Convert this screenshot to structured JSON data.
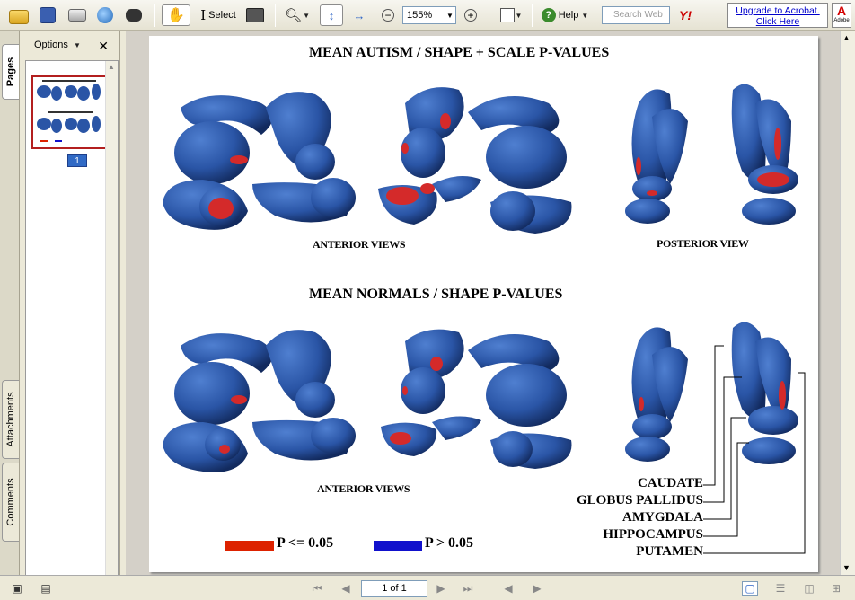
{
  "toolbar": {
    "select_label": "Select",
    "zoom_value": "155%",
    "help_label": "Help",
    "search_placeholder": "Search Web",
    "yahoo_label": "Y!",
    "upgrade_line1": "Upgrade to Acrobat.",
    "upgrade_line2": "Click Here",
    "adobe_label": "Adobe"
  },
  "nav": {
    "tabs": [
      "Pages",
      "Attachments",
      "Comments"
    ],
    "options_label": "Options",
    "page_badge": "1"
  },
  "document": {
    "title_top": "MEAN AUTISM /  SHAPE + SCALE P-VALUES",
    "label_anterior_top": "ANTERIOR VIEWS",
    "label_posterior": "POSTERIOR VIEW",
    "title_bottom": "MEAN NORMALS  /  SHAPE P-VALUES",
    "label_anterior_bottom": "ANTERIOR VIEWS",
    "structures": [
      "CAUDATE",
      "GLOBUS PALLIDUS",
      "AMYGDALA",
      "HIPPOCAMPUS",
      "PUTAMEN"
    ],
    "legend": [
      {
        "label": "P <= 0.05",
        "color": "#dd2200"
      },
      {
        "label": "P > 0.05",
        "color": "#1111cc"
      }
    ]
  },
  "status": {
    "page_field": "1 of 1"
  },
  "colors": {
    "structure_blue": "#2a55a6",
    "structure_dark": "#14306a",
    "significant_red": "#d42a2a"
  }
}
